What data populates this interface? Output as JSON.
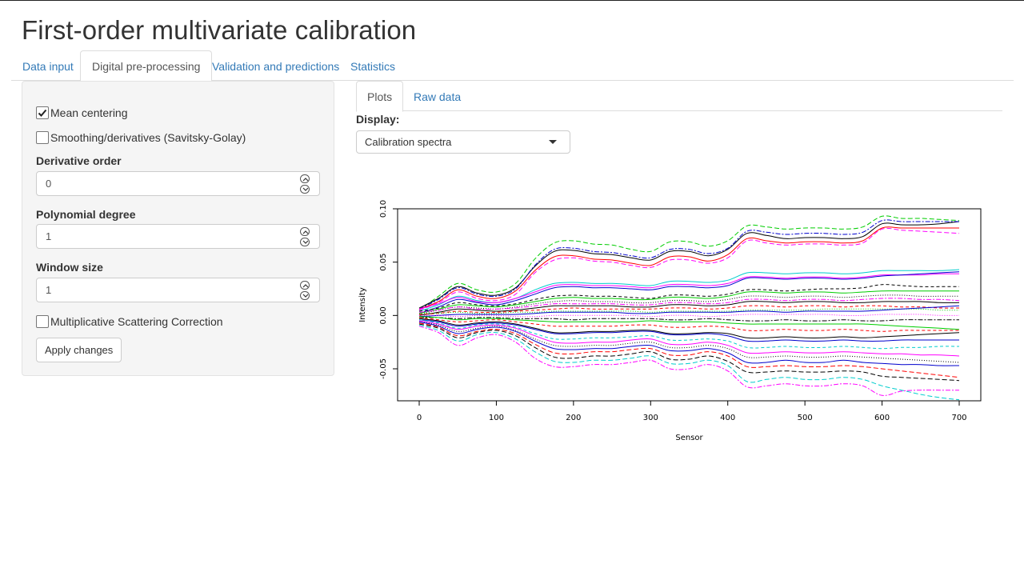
{
  "app": {
    "title": "First-order multivariate calibration"
  },
  "main_tabs": [
    {
      "label": "Data input"
    },
    {
      "label": "Digital pre-processing"
    },
    {
      "label": "Validation and predictions"
    },
    {
      "label": "Statistics"
    }
  ],
  "sidebar": {
    "mean_centering": {
      "label": "Mean centering",
      "checked": true
    },
    "smoothing": {
      "label": "Smoothing/derivatives (Savitsky-Golay)",
      "checked": false
    },
    "derivative_order": {
      "label": "Derivative order",
      "value": "0"
    },
    "polynomial_degree": {
      "label": "Polynomial degree",
      "value": "1"
    },
    "window_size": {
      "label": "Window size",
      "value": "1"
    },
    "msc": {
      "label": "Multiplicative Scattering Correction",
      "checked": false
    },
    "apply_label": "Apply changes"
  },
  "sub_tabs": [
    {
      "label": "Plots"
    },
    {
      "label": "Raw data"
    }
  ],
  "display": {
    "label": "Display:",
    "selected": "Calibration spectra"
  },
  "chart_data": {
    "type": "line",
    "title": "",
    "xlabel": "Sensor",
    "ylabel": "Intensity",
    "xlim": [
      0,
      700
    ],
    "ylim": [
      -0.08,
      0.1
    ],
    "x_ticks": [
      "0",
      "100",
      "200",
      "300",
      "400",
      "500",
      "600",
      "700"
    ],
    "y_ticks": [
      "-0.05",
      "0.00",
      "0.05",
      "0.10"
    ],
    "grid": false,
    "x": [
      0,
      25,
      50,
      75,
      100,
      125,
      150,
      175,
      200,
      225,
      250,
      275,
      300,
      325,
      350,
      375,
      400,
      425,
      450,
      475,
      500,
      525,
      550,
      575,
      600,
      625,
      650,
      675,
      700
    ],
    "series": [
      {
        "color": "#00CD00",
        "dash": "6,3",
        "values": [
          0.005,
          0.018,
          0.03,
          0.024,
          0.022,
          0.03,
          0.053,
          0.068,
          0.07,
          0.067,
          0.066,
          0.062,
          0.06,
          0.069,
          0.069,
          0.065,
          0.07,
          0.084,
          0.083,
          0.081,
          0.082,
          0.082,
          0.081,
          0.083,
          0.093,
          0.091,
          0.091,
          0.09,
          0.089
        ]
      },
      {
        "color": "#000000",
        "dash": "",
        "values": [
          0.007,
          0.016,
          0.027,
          0.021,
          0.019,
          0.026,
          0.046,
          0.06,
          0.061,
          0.058,
          0.057,
          0.054,
          0.052,
          0.06,
          0.06,
          0.056,
          0.062,
          0.077,
          0.075,
          0.072,
          0.073,
          0.073,
          0.072,
          0.074,
          0.086,
          0.085,
          0.085,
          0.086,
          0.088
        ]
      },
      {
        "color": "#0000CD",
        "dash": "6,2,2,2",
        "values": [
          0.006,
          0.015,
          0.026,
          0.02,
          0.018,
          0.025,
          0.047,
          0.062,
          0.063,
          0.06,
          0.059,
          0.056,
          0.054,
          0.062,
          0.062,
          0.058,
          0.063,
          0.079,
          0.078,
          0.076,
          0.077,
          0.077,
          0.076,
          0.078,
          0.089,
          0.088,
          0.088,
          0.088,
          0.088
        ]
      },
      {
        "color": "#FF0000",
        "dash": "",
        "values": [
          0.006,
          0.013,
          0.024,
          0.018,
          0.016,
          0.023,
          0.042,
          0.055,
          0.056,
          0.053,
          0.052,
          0.049,
          0.047,
          0.055,
          0.055,
          0.051,
          0.057,
          0.072,
          0.07,
          0.068,
          0.069,
          0.069,
          0.068,
          0.07,
          0.082,
          0.082,
          0.082,
          0.082,
          0.082
        ]
      },
      {
        "color": "#FF00FF",
        "dash": "6,3",
        "values": [
          0.005,
          0.012,
          0.022,
          0.016,
          0.014,
          0.02,
          0.04,
          0.052,
          0.054,
          0.051,
          0.05,
          0.047,
          0.045,
          0.052,
          0.052,
          0.049,
          0.054,
          0.07,
          0.068,
          0.066,
          0.067,
          0.067,
          0.066,
          0.068,
          0.081,
          0.08,
          0.079,
          0.078,
          0.077
        ]
      },
      {
        "color": "#00CDCD",
        "dash": "",
        "values": [
          0.004,
          0.01,
          0.018,
          0.014,
          0.012,
          0.016,
          0.024,
          0.03,
          0.031,
          0.03,
          0.03,
          0.029,
          0.028,
          0.032,
          0.032,
          0.031,
          0.033,
          0.04,
          0.04,
          0.039,
          0.04,
          0.04,
          0.039,
          0.04,
          0.042,
          0.042,
          0.042,
          0.042,
          0.043
        ]
      },
      {
        "color": "#FF00FF",
        "dash": "",
        "values": [
          0.006,
          0.011,
          0.017,
          0.013,
          0.012,
          0.016,
          0.022,
          0.028,
          0.029,
          0.028,
          0.028,
          0.027,
          0.026,
          0.029,
          0.029,
          0.028,
          0.03,
          0.036,
          0.036,
          0.035,
          0.036,
          0.036,
          0.035,
          0.036,
          0.038,
          0.038,
          0.038,
          0.039,
          0.039
        ]
      },
      {
        "color": "#0000CD",
        "dash": "",
        "values": [
          0.002,
          0.008,
          0.015,
          0.012,
          0.01,
          0.014,
          0.02,
          0.026,
          0.027,
          0.026,
          0.026,
          0.025,
          0.024,
          0.027,
          0.027,
          0.026,
          0.028,
          0.035,
          0.035,
          0.034,
          0.035,
          0.035,
          0.034,
          0.035,
          0.037,
          0.038,
          0.039,
          0.04,
          0.041
        ]
      },
      {
        "color": "#000000",
        "dash": "4,3",
        "values": [
          0.004,
          0.007,
          0.012,
          0.01,
          0.009,
          0.011,
          0.015,
          0.018,
          0.019,
          0.018,
          0.018,
          0.017,
          0.016,
          0.019,
          0.019,
          0.018,
          0.02,
          0.024,
          0.024,
          0.023,
          0.024,
          0.025,
          0.025,
          0.026,
          0.029,
          0.028,
          0.027,
          0.027,
          0.027
        ]
      },
      {
        "color": "#00CD00",
        "dash": "",
        "values": [
          0.002,
          0.006,
          0.01,
          0.009,
          0.008,
          0.01,
          0.013,
          0.016,
          0.017,
          0.016,
          0.016,
          0.015,
          0.015,
          0.017,
          0.017,
          0.016,
          0.018,
          0.022,
          0.022,
          0.021,
          0.022,
          0.022,
          0.021,
          0.022,
          0.023,
          0.023,
          0.023,
          0.023,
          0.023
        ]
      },
      {
        "color": "#000000",
        "dash": "1,2",
        "values": [
          0.001,
          0.005,
          0.008,
          0.007,
          0.006,
          0.008,
          0.011,
          0.013,
          0.014,
          0.013,
          0.013,
          0.012,
          0.012,
          0.014,
          0.014,
          0.013,
          0.015,
          0.018,
          0.018,
          0.017,
          0.018,
          0.018,
          0.017,
          0.018,
          0.019,
          0.019,
          0.018,
          0.018,
          0.018
        ]
      },
      {
        "color": "#FF00FF",
        "dash": "6,2,2,2",
        "values": [
          0.003,
          0.005,
          0.008,
          0.006,
          0.006,
          0.007,
          0.009,
          0.011,
          0.011,
          0.011,
          0.011,
          0.01,
          0.01,
          0.012,
          0.012,
          0.011,
          0.012,
          0.015,
          0.015,
          0.014,
          0.015,
          0.015,
          0.014,
          0.015,
          0.016,
          0.016,
          0.015,
          0.015,
          0.014
        ]
      },
      {
        "color": "#000000",
        "dash": "",
        "values": [
          0.0,
          0.003,
          0.006,
          0.005,
          0.004,
          0.005,
          0.007,
          0.009,
          0.009,
          0.009,
          0.009,
          0.008,
          0.008,
          0.01,
          0.01,
          0.009,
          0.01,
          0.013,
          0.013,
          0.012,
          0.013,
          0.013,
          0.012,
          0.012,
          0.013,
          0.013,
          0.013,
          0.012,
          0.012
        ]
      },
      {
        "color": "#FF0000",
        "dash": "4,3",
        "values": [
          0.001,
          0.002,
          0.004,
          0.003,
          0.003,
          0.004,
          0.005,
          0.006,
          0.007,
          0.006,
          0.006,
          0.006,
          0.006,
          0.007,
          0.007,
          0.006,
          0.007,
          0.009,
          0.009,
          0.008,
          0.009,
          0.009,
          0.008,
          0.009,
          0.009,
          0.008,
          0.008,
          0.007,
          0.007
        ]
      },
      {
        "color": "#00CD00",
        "dash": "1,2",
        "values": [
          0.002,
          0.002,
          0.003,
          0.002,
          0.002,
          0.003,
          0.003,
          0.004,
          0.004,
          0.004,
          0.004,
          0.004,
          0.003,
          0.004,
          0.004,
          0.004,
          0.004,
          0.005,
          0.005,
          0.005,
          0.005,
          0.006,
          0.006,
          0.006,
          0.006,
          0.006,
          0.006,
          0.005,
          0.005
        ]
      },
      {
        "color": "#0000CD",
        "dash": "",
        "values": [
          -0.001,
          0.0,
          0.001,
          0.001,
          0.001,
          0.001,
          0.002,
          0.003,
          0.003,
          0.003,
          0.003,
          0.002,
          0.002,
          0.003,
          0.003,
          0.003,
          0.003,
          0.004,
          0.004,
          0.003,
          0.004,
          0.004,
          0.004,
          0.004,
          0.005,
          0.006,
          0.007,
          0.008,
          0.009
        ]
      },
      {
        "color": "#FF00FF",
        "dash": "1,2",
        "values": [
          0.0,
          0.0,
          -0.001,
          0.0,
          0.0,
          -0.001,
          -0.001,
          0.0,
          0.0,
          0.0,
          0.0,
          0.0,
          -0.001,
          0.0,
          0.0,
          -0.001,
          0.0,
          0.001,
          0.001,
          0.001,
          0.001,
          0.001,
          0.0,
          0.0,
          0.001,
          0.001,
          0.001,
          0.0,
          0.0
        ]
      },
      {
        "color": "#000000",
        "dash": "6,2,2,2",
        "values": [
          -0.002,
          -0.002,
          -0.003,
          -0.002,
          -0.002,
          -0.003,
          -0.003,
          -0.003,
          -0.004,
          -0.003,
          -0.003,
          -0.003,
          -0.003,
          -0.004,
          -0.004,
          -0.003,
          -0.004,
          -0.005,
          -0.005,
          -0.004,
          -0.005,
          -0.005,
          -0.004,
          -0.005,
          -0.005,
          -0.004,
          -0.004,
          -0.004,
          -0.004
        ]
      },
      {
        "color": "#00CD00",
        "dash": "",
        "values": [
          -0.001,
          -0.002,
          -0.004,
          -0.003,
          -0.003,
          -0.004,
          -0.005,
          -0.006,
          -0.006,
          -0.006,
          -0.006,
          -0.006,
          -0.005,
          -0.006,
          -0.006,
          -0.006,
          -0.007,
          -0.008,
          -0.008,
          -0.008,
          -0.008,
          -0.008,
          -0.008,
          -0.008,
          -0.009,
          -0.01,
          -0.011,
          -0.012,
          -0.013
        ]
      },
      {
        "color": "#FF0000",
        "dash": "4,3",
        "values": [
          -0.002,
          -0.004,
          -0.006,
          -0.005,
          -0.004,
          -0.006,
          -0.008,
          -0.01,
          -0.01,
          -0.01,
          -0.01,
          -0.009,
          -0.009,
          -0.011,
          -0.011,
          -0.01,
          -0.011,
          -0.014,
          -0.014,
          -0.013,
          -0.014,
          -0.014,
          -0.013,
          -0.014,
          -0.015,
          -0.014,
          -0.014,
          -0.014,
          -0.014
        ]
      },
      {
        "color": "#000000",
        "dash": "",
        "values": [
          -0.003,
          -0.005,
          -0.009,
          -0.007,
          -0.006,
          -0.008,
          -0.012,
          -0.016,
          -0.016,
          -0.015,
          -0.015,
          -0.014,
          -0.014,
          -0.017,
          -0.017,
          -0.016,
          -0.017,
          -0.021,
          -0.021,
          -0.02,
          -0.021,
          -0.021,
          -0.02,
          -0.021,
          -0.02,
          -0.019,
          -0.018,
          -0.017,
          -0.016
        ]
      },
      {
        "color": "#0000CD",
        "dash": "",
        "values": [
          -0.004,
          -0.006,
          -0.01,
          -0.008,
          -0.007,
          -0.009,
          -0.013,
          -0.017,
          -0.017,
          -0.016,
          -0.016,
          -0.015,
          -0.015,
          -0.018,
          -0.018,
          -0.017,
          -0.019,
          -0.024,
          -0.024,
          -0.023,
          -0.024,
          -0.024,
          -0.023,
          -0.024,
          -0.024,
          -0.023,
          -0.023,
          -0.023,
          -0.023
        ]
      },
      {
        "color": "#00CDCD",
        "dash": "4,3",
        "values": [
          -0.004,
          -0.007,
          -0.012,
          -0.009,
          -0.008,
          -0.011,
          -0.017,
          -0.022,
          -0.022,
          -0.021,
          -0.021,
          -0.02,
          -0.019,
          -0.023,
          -0.023,
          -0.022,
          -0.024,
          -0.03,
          -0.03,
          -0.029,
          -0.03,
          -0.03,
          -0.029,
          -0.03,
          -0.031,
          -0.03,
          -0.03,
          -0.029,
          -0.029
        ]
      },
      {
        "color": "#FF00FF",
        "dash": "",
        "values": [
          -0.005,
          -0.008,
          -0.013,
          -0.01,
          -0.009,
          -0.012,
          -0.019,
          -0.025,
          -0.026,
          -0.025,
          -0.025,
          -0.023,
          -0.022,
          -0.027,
          -0.027,
          -0.025,
          -0.028,
          -0.035,
          -0.035,
          -0.034,
          -0.035,
          -0.035,
          -0.034,
          -0.035,
          -0.036,
          -0.036,
          -0.037,
          -0.037,
          -0.038
        ]
      },
      {
        "color": "#000000",
        "dash": "1,2",
        "values": [
          -0.006,
          -0.009,
          -0.015,
          -0.012,
          -0.01,
          -0.014,
          -0.022,
          -0.028,
          -0.029,
          -0.028,
          -0.028,
          -0.026,
          -0.025,
          -0.03,
          -0.03,
          -0.028,
          -0.031,
          -0.039,
          -0.039,
          -0.038,
          -0.039,
          -0.039,
          -0.038,
          -0.039,
          -0.04,
          -0.041,
          -0.042,
          -0.043,
          -0.044
        ]
      },
      {
        "color": "#0000CD",
        "dash": "",
        "values": [
          -0.006,
          -0.01,
          -0.017,
          -0.013,
          -0.011,
          -0.015,
          -0.024,
          -0.031,
          -0.032,
          -0.031,
          -0.031,
          -0.029,
          -0.028,
          -0.033,
          -0.033,
          -0.031,
          -0.035,
          -0.044,
          -0.044,
          -0.042,
          -0.044,
          -0.044,
          -0.042,
          -0.044,
          -0.045,
          -0.046,
          -0.046,
          -0.047,
          -0.047
        ]
      },
      {
        "color": "#FF0000",
        "dash": "6,3",
        "values": [
          -0.007,
          -0.011,
          -0.019,
          -0.015,
          -0.013,
          -0.017,
          -0.027,
          -0.035,
          -0.036,
          -0.034,
          -0.034,
          -0.032,
          -0.031,
          -0.037,
          -0.037,
          -0.034,
          -0.038,
          -0.048,
          -0.048,
          -0.047,
          -0.048,
          -0.048,
          -0.047,
          -0.048,
          -0.05,
          -0.052,
          -0.054,
          -0.056,
          -0.058
        ]
      },
      {
        "color": "#000000",
        "dash": "6,3",
        "values": [
          -0.008,
          -0.012,
          -0.021,
          -0.016,
          -0.014,
          -0.019,
          -0.03,
          -0.039,
          -0.04,
          -0.038,
          -0.038,
          -0.036,
          -0.034,
          -0.041,
          -0.041,
          -0.038,
          -0.043,
          -0.053,
          -0.053,
          -0.052,
          -0.053,
          -0.053,
          -0.052,
          -0.053,
          -0.057,
          -0.058,
          -0.059,
          -0.06,
          -0.061
        ]
      },
      {
        "color": "#00CDCD",
        "dash": "6,3",
        "values": [
          -0.009,
          -0.014,
          -0.024,
          -0.018,
          -0.016,
          -0.022,
          -0.034,
          -0.043,
          -0.044,
          -0.042,
          -0.042,
          -0.04,
          -0.038,
          -0.045,
          -0.045,
          -0.042,
          -0.047,
          -0.062,
          -0.06,
          -0.058,
          -0.06,
          -0.06,
          -0.058,
          -0.06,
          -0.066,
          -0.07,
          -0.074,
          -0.077,
          -0.079
        ]
      },
      {
        "color": "#FF00FF",
        "dash": "6,2,2,2",
        "values": [
          -0.01,
          -0.016,
          -0.028,
          -0.021,
          -0.018,
          -0.025,
          -0.04,
          -0.048,
          -0.048,
          -0.046,
          -0.046,
          -0.044,
          -0.042,
          -0.05,
          -0.05,
          -0.046,
          -0.052,
          -0.067,
          -0.066,
          -0.064,
          -0.066,
          -0.066,
          -0.064,
          -0.066,
          -0.075,
          -0.071,
          -0.07,
          -0.07,
          -0.07
        ]
      }
    ]
  }
}
